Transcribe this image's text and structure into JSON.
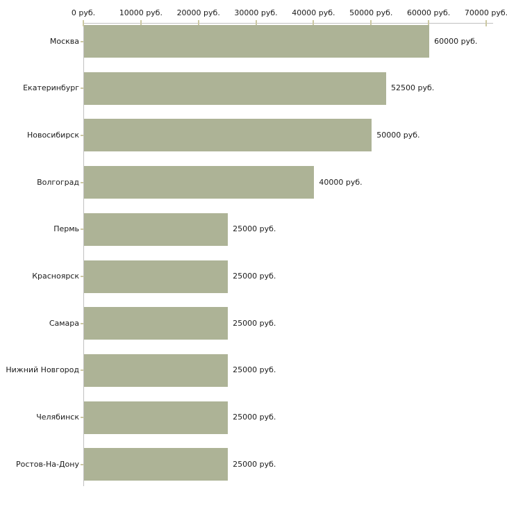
{
  "chart_data": {
    "type": "bar",
    "orientation": "horizontal",
    "title": "",
    "xlabel": "",
    "ylabel": "",
    "unit": "руб.",
    "xlim": [
      0,
      70000
    ],
    "grid": false,
    "legend": false,
    "categories": [
      "Москва",
      "Екатеринбург",
      "Новосибирск",
      "Волгоград",
      "Пермь",
      "Красноярск",
      "Самара",
      "Нижний Новгород",
      "Челябинск",
      "Ростов-На-Дону"
    ],
    "values": [
      60000,
      52500,
      50000,
      40000,
      25000,
      25000,
      25000,
      25000,
      25000,
      25000
    ],
    "value_labels": [
      "60000 руб.",
      "52500 руб.",
      "50000 руб.",
      "40000 руб.",
      "25000 руб.",
      "25000 руб.",
      "25000 руб.",
      "25000 руб.",
      "25000 руб.",
      "25000 руб."
    ],
    "x_tick_values": [
      0,
      10000,
      20000,
      30000,
      40000,
      50000,
      60000,
      70000
    ],
    "x_tick_labels": [
      "0 руб.",
      "10000 руб.",
      "20000 руб.",
      "30000 руб.",
      "40000 руб.",
      "50000 руб.",
      "60000 руб.",
      "70000 руб."
    ],
    "colors": {
      "bar_fill": "#ADB396",
      "axis_line": "#C0C0C0",
      "tick_mark": "#CCC8A2",
      "text": "#1a1a1a",
      "background": "#ffffff"
    }
  }
}
